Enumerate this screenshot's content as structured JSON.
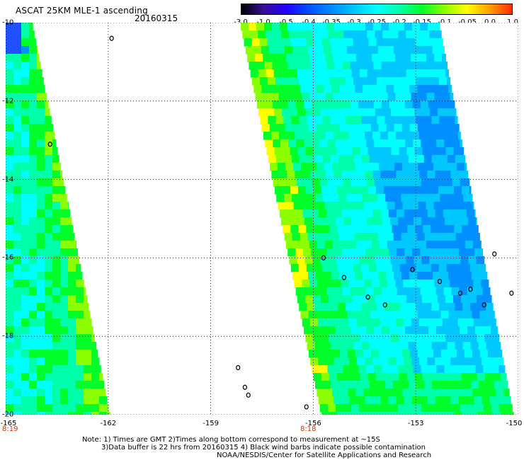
{
  "header": {
    "title": "ASCAT 25KM MLE-1 ascending",
    "date": "20160315"
  },
  "colorbar": {
    "labels": [
      "-3.0",
      "-1.0",
      "-0.5",
      "-0.4",
      "-0.35",
      "-0.3",
      "-0.25",
      "-0.2",
      "-0.15",
      "-0.1",
      "-0.05",
      "0.0",
      "1.0"
    ],
    "colors": [
      "#000000",
      "#3a0a9a",
      "#1f00ff",
      "#0050ff",
      "#008bff",
      "#00c6ff",
      "#00ffff",
      "#00ffaa",
      "#00ff2a",
      "#8cff00",
      "#ffff00",
      "#ffa000",
      "#ff2a00"
    ]
  },
  "map": {
    "lat_labels": [
      "-10",
      "-12",
      "-14",
      "-16",
      "-18",
      "-20"
    ],
    "lon_labels": [
      "-165",
      "-162",
      "-159",
      "-156",
      "-153",
      "-150"
    ],
    "lat_range": [
      -20,
      -10
    ],
    "lon_range": [
      -165,
      -150
    ],
    "grid": "dotted",
    "swath_time_labels": [
      "8:19",
      "8:18"
    ],
    "palette": {
      "blue": "#2050ff",
      "light_blue": "#0090ff",
      "sky": "#00c8ff",
      "cyan": "#00ffff",
      "aqua_green": "#00ffaa",
      "green": "#00ff2a",
      "yellow_green": "#8cff00",
      "yellow": "#ffff00",
      "orange": "#ffa000"
    }
  },
  "notes": {
    "line1": "Note: 1) Times are GMT 2)Times along bottom correspond to measurement at ~15S",
    "line2": "3)Data buffer is 22 hrs from 20160315 4) Black wind barbs indicate possible contamination",
    "line3": "NOAA/NESDIS/Center for Satellite Applications and Research"
  }
}
